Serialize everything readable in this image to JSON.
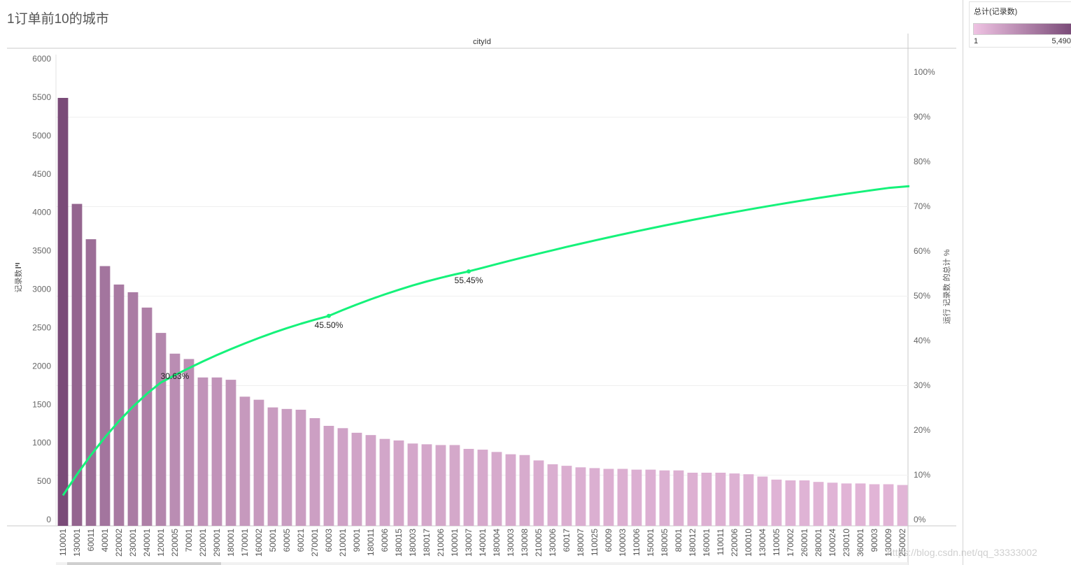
{
  "sheet": {
    "title": "1订单前10的城市",
    "watermark": "https://blog.csdn.net/qq_33333002"
  },
  "legend": {
    "title": "总计(记录数)",
    "min_label": "1",
    "max_label": "5,490",
    "color_low": "#efc3e3",
    "color_high": "#7a4b78"
  },
  "chart_data": {
    "type": "bar",
    "title": "1订单前10的城市",
    "column_header": "cityId",
    "ylabel": "记录数",
    "y2label": "运行 记录数 的总计 %",
    "ylim": [
      0,
      6000
    ],
    "y2lim": [
      0,
      1
    ],
    "yticks": [
      0,
      500,
      1000,
      1500,
      2000,
      2500,
      3000,
      3500,
      4000,
      4500,
      5000,
      5500,
      6000
    ],
    "y2ticks": [
      "0%",
      "10%",
      "20%",
      "30%",
      "40%",
      "50%",
      "60%",
      "70%",
      "80%",
      "90%",
      "100%"
    ],
    "bar_color_low": "#efc3e3",
    "bar_color_high": "#7a4b78",
    "bar_color_value_max": 5490,
    "line_color": "#15f27a",
    "categories": [
      "110001",
      "130001",
      "60011",
      "40001",
      "220002",
      "230001",
      "240001",
      "120001",
      "220005",
      "70001",
      "220001",
      "290001",
      "180001",
      "170001",
      "160002",
      "50001",
      "60005",
      "60021",
      "270001",
      "60003",
      "210001",
      "90001",
      "180011",
      "60006",
      "180015",
      "180003",
      "180017",
      "210006",
      "100001",
      "130007",
      "140001",
      "180004",
      "130003",
      "130008",
      "210005",
      "130006",
      "60017",
      "180007",
      "110025",
      "60009",
      "100003",
      "110006",
      "150001",
      "180005",
      "80001",
      "180012",
      "160001",
      "110011",
      "220006",
      "100010",
      "130004",
      "110005",
      "170002",
      "260001",
      "280001",
      "100024",
      "230010",
      "360001",
      "90003",
      "130009",
      "250002"
    ],
    "values": [
      5490,
      4110,
      3650,
      3300,
      3060,
      2960,
      2760,
      2430,
      2160,
      2090,
      1850,
      1850,
      1820,
      1600,
      1560,
      1460,
      1440,
      1430,
      1320,
      1220,
      1190,
      1130,
      1100,
      1050,
      1030,
      990,
      980,
      970,
      970,
      920,
      910,
      880,
      850,
      840,
      770,
      720,
      700,
      680,
      670,
      660,
      660,
      650,
      650,
      640,
      640,
      610,
      610,
      610,
      600,
      590,
      560,
      520,
      510,
      510,
      490,
      480,
      470,
      470,
      460,
      460,
      450
    ],
    "running_total_pct": {
      "start": 0.054,
      "end": 0.745,
      "annotations": [
        {
          "category": "120001",
          "label": "30.63%",
          "value": 0.3063
        },
        {
          "category": "60003",
          "label": "45.50%",
          "value": 0.455
        },
        {
          "category": "130007",
          "label": "55.45%",
          "value": 0.5545
        }
      ]
    },
    "grid": true,
    "legend_position": "top-right"
  }
}
